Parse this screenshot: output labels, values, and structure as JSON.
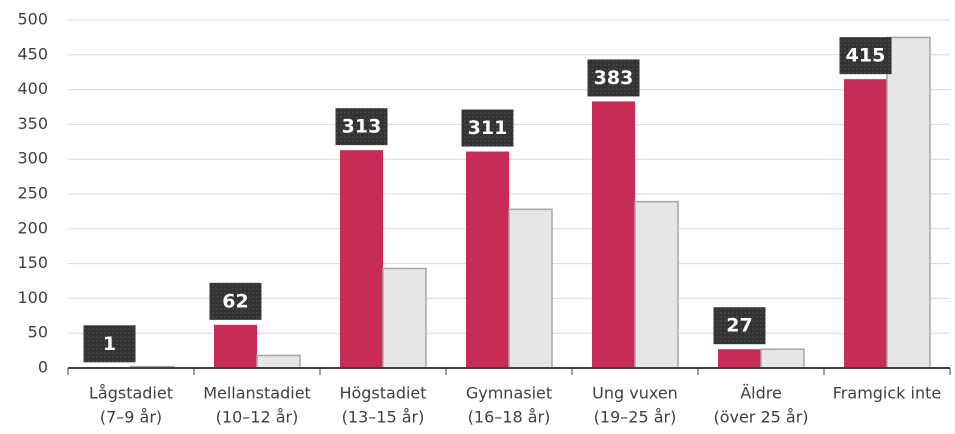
{
  "chart_data": {
    "type": "bar",
    "categories": [
      [
        "Lågstadiet",
        "(7–9 år)"
      ],
      [
        "Mellanstadiet",
        "(10–12 år)"
      ],
      [
        "Högstadiet",
        "(13–15 år)"
      ],
      [
        "Gymnasiet",
        "(16–18 år)"
      ],
      [
        "Ung vuxen",
        "(19–25 år)"
      ],
      [
        "Äldre",
        "(över 25 år)"
      ],
      [
        "Framgick inte"
      ]
    ],
    "series": [
      {
        "color": "#c72c57",
        "values": [
          1,
          62,
          313,
          311,
          383,
          27,
          415
        ],
        "labels": true
      },
      {
        "color": "#e6e6e6",
        "values": [
          2,
          18,
          143,
          228,
          239,
          27,
          475
        ],
        "labels": false
      }
    ],
    "ylim": [
      0,
      500
    ],
    "yticks": [
      0,
      50,
      100,
      150,
      200,
      250,
      300,
      350,
      400,
      450,
      500
    ],
    "grid": true
  }
}
